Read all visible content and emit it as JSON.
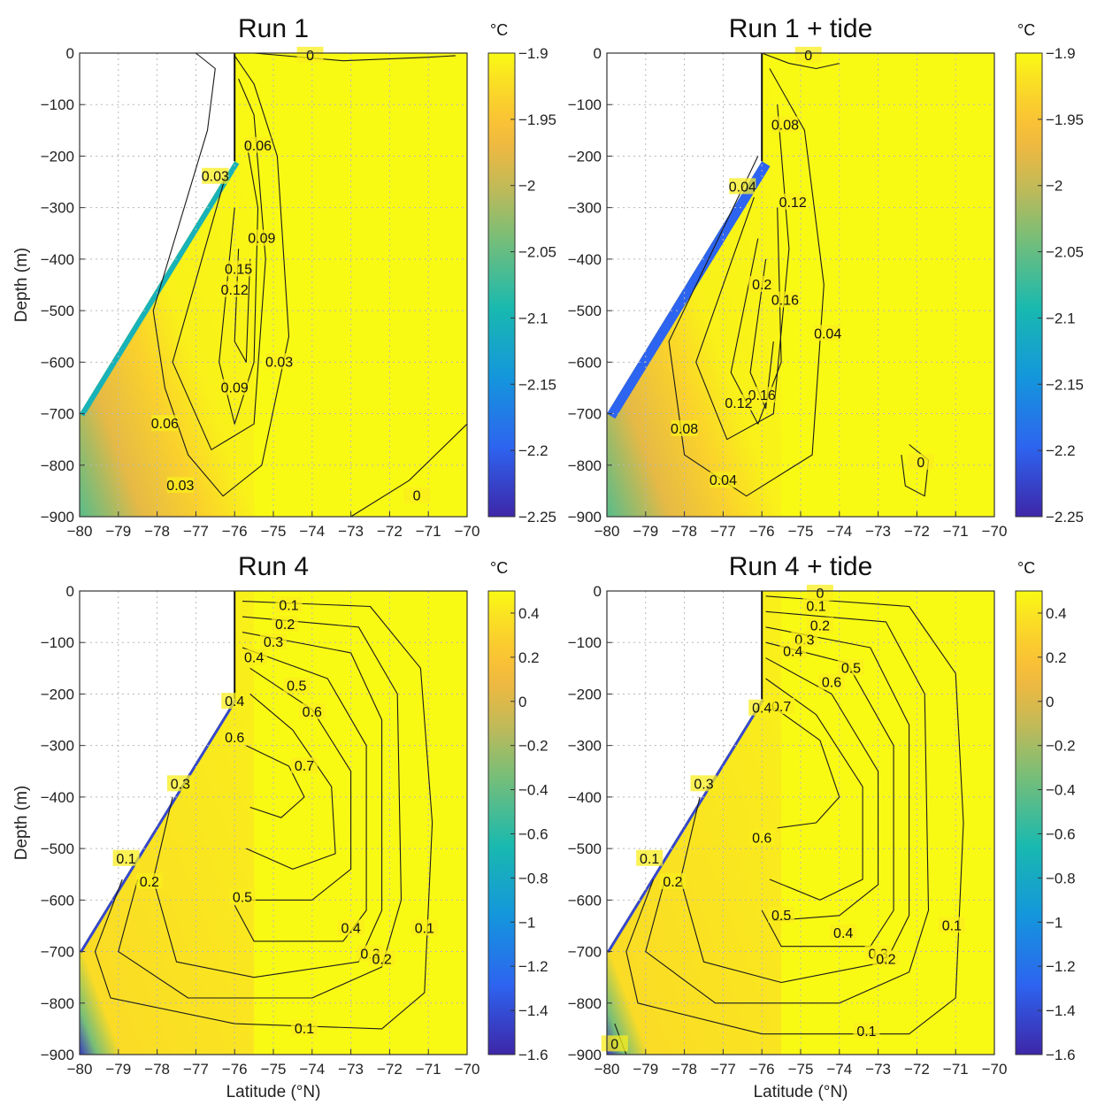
{
  "chart_data": [
    {
      "type": "heatmap",
      "title": "Run 1",
      "xlabel": "",
      "ylabel": "Depth (m)",
      "xlim": [
        -80,
        -70
      ],
      "ylim": [
        -900,
        0
      ],
      "xticks": [
        "-80",
        "-79",
        "-78",
        "-77",
        "-76",
        "-75",
        "-74",
        "-73",
        "-72",
        "-71",
        "-70"
      ],
      "yticks": [
        "0",
        "-100",
        "-200",
        "-300",
        "-400",
        "-500",
        "-600",
        "-700",
        "-800",
        "-900"
      ],
      "colorbar": {
        "unit": "°C",
        "range": [
          -2.25,
          -1.9
        ],
        "ticks": [
          "-1.9",
          "-1.95",
          "-2",
          "-2.05",
          "-2.1",
          "-2.15",
          "-2.2",
          "-2.25"
        ]
      },
      "grid": true,
      "contour_labels": [
        {
          "text": "0",
          "x": -74.05,
          "y": -5
        },
        {
          "text": "0.03",
          "x": -76.5,
          "y": -240
        },
        {
          "text": "0.06",
          "x": -75.4,
          "y": -180
        },
        {
          "text": "0.09",
          "x": -75.3,
          "y": -360
        },
        {
          "text": "0.15",
          "x": -75.9,
          "y": -420
        },
        {
          "text": "0.12",
          "x": -76.0,
          "y": -460
        },
        {
          "text": "0.03",
          "x": -74.85,
          "y": -600
        },
        {
          "text": "0.09",
          "x": -76.0,
          "y": -650
        },
        {
          "text": "0.06",
          "x": -77.8,
          "y": -720
        },
        {
          "text": "0.03",
          "x": -77.4,
          "y": -840
        },
        {
          "text": "0",
          "x": -71.3,
          "y": -860
        }
      ]
    },
    {
      "type": "heatmap",
      "title": "Run 1 + tide",
      "xlabel": "",
      "ylabel": "",
      "xlim": [
        -80,
        -70
      ],
      "ylim": [
        -900,
        0
      ],
      "xticks": [
        "-80",
        "-79",
        "-78",
        "-77",
        "-76",
        "-75",
        "-74",
        "-73",
        "-72",
        "-71",
        "-70"
      ],
      "yticks": [
        "0",
        "-100",
        "-200",
        "-300",
        "-400",
        "-500",
        "-600",
        "-700",
        "-800",
        "-900"
      ],
      "colorbar": {
        "unit": "°C",
        "range": [
          -2.25,
          -1.9
        ],
        "ticks": [
          "-1.9",
          "-1.95",
          "-2",
          "-2.05",
          "-2.1",
          "-2.15",
          "-2.2",
          "-2.25"
        ]
      },
      "grid": true,
      "contour_labels": [
        {
          "text": "0",
          "x": -74.8,
          "y": -5
        },
        {
          "text": "0.08",
          "x": -75.4,
          "y": -140
        },
        {
          "text": "0.04",
          "x": -76.5,
          "y": -260
        },
        {
          "text": "0.12",
          "x": -75.2,
          "y": -290
        },
        {
          "text": "0.2",
          "x": -76.0,
          "y": -450
        },
        {
          "text": "0.16",
          "x": -75.4,
          "y": -480
        },
        {
          "text": "0.04",
          "x": -74.3,
          "y": -545
        },
        {
          "text": "0.16",
          "x": -76.0,
          "y": -665
        },
        {
          "text": "0.12",
          "x": -76.6,
          "y": -680
        },
        {
          "text": "0.08",
          "x": -78.0,
          "y": -730
        },
        {
          "text": "0.04",
          "x": -77.0,
          "y": -830
        },
        {
          "text": "0",
          "x": -71.9,
          "y": -795
        }
      ]
    },
    {
      "type": "heatmap",
      "title": "Run 4",
      "xlabel": "Latitude (°N)",
      "ylabel": "Depth (m)",
      "xlim": [
        -80,
        -70
      ],
      "ylim": [
        -900,
        0
      ],
      "xticks": [
        "-80",
        "-79",
        "-78",
        "-77",
        "-76",
        "-75",
        "-74",
        "-73",
        "-72",
        "-71",
        "-70"
      ],
      "yticks": [
        "0",
        "-100",
        "-200",
        "-300",
        "-400",
        "-500",
        "-600",
        "-700",
        "-800",
        "-900"
      ],
      "colorbar": {
        "unit": "°C",
        "range": [
          -1.6,
          0.5
        ],
        "ticks": [
          "0.4",
          "0.2",
          "0",
          "-0.2",
          "-0.4",
          "-0.6",
          "-0.8",
          "-1",
          "-1.2",
          "-1.4",
          "-1.6"
        ]
      },
      "grid": true,
      "contour_labels": [
        {
          "text": "0.1",
          "x": -74.6,
          "y": -28
        },
        {
          "text": "0.2",
          "x": -74.7,
          "y": -65
        },
        {
          "text": "0.3",
          "x": -75.0,
          "y": -100
        },
        {
          "text": "0.4",
          "x": -75.5,
          "y": -130
        },
        {
          "text": "0.5",
          "x": -74.4,
          "y": -185
        },
        {
          "text": "0.6",
          "x": -74.0,
          "y": -235
        },
        {
          "text": "0.4",
          "x": -76.0,
          "y": -215
        },
        {
          "text": "0.6",
          "x": -76.0,
          "y": -285
        },
        {
          "text": "0.7",
          "x": -74.2,
          "y": -340
        },
        {
          "text": "0.3",
          "x": -77.4,
          "y": -375
        },
        {
          "text": "0.1",
          "x": -78.8,
          "y": -520
        },
        {
          "text": "0.2",
          "x": -78.2,
          "y": -565
        },
        {
          "text": "0.5",
          "x": -75.8,
          "y": -595
        },
        {
          "text": "0.4",
          "x": -73.0,
          "y": -655
        },
        {
          "text": "0.3",
          "x": -72.5,
          "y": -705
        },
        {
          "text": "0.2",
          "x": -72.2,
          "y": -715
        },
        {
          "text": "0.1",
          "x": -71.1,
          "y": -655
        },
        {
          "text": "0.1",
          "x": -74.2,
          "y": -850
        }
      ]
    },
    {
      "type": "heatmap",
      "title": "Run 4 + tide",
      "xlabel": "Latitude (°N)",
      "ylabel": "",
      "xlim": [
        -80,
        -70
      ],
      "ylim": [
        -900,
        0
      ],
      "xticks": [
        "-80",
        "-79",
        "-78",
        "-77",
        "-76",
        "-75",
        "-74",
        "-73",
        "-72",
        "-71",
        "-70"
      ],
      "yticks": [
        "0",
        "-100",
        "-200",
        "-300",
        "-400",
        "-500",
        "-600",
        "-700",
        "-800",
        "-900"
      ],
      "colorbar": {
        "unit": "°C",
        "range": [
          -1.6,
          0.5
        ],
        "ticks": [
          "0.4",
          "0.2",
          "0",
          "-0.2",
          "-0.4",
          "-0.6",
          "-0.8",
          "-1",
          "-1.2",
          "-1.4",
          "-1.6"
        ]
      },
      "grid": true,
      "contour_labels": [
        {
          "text": "0",
          "x": -74.5,
          "y": -5
        },
        {
          "text": "0.1",
          "x": -74.6,
          "y": -30
        },
        {
          "text": "0.2",
          "x": -74.5,
          "y": -68
        },
        {
          "text": "0.3",
          "x": -74.9,
          "y": -95
        },
        {
          "text": "0.4",
          "x": -75.2,
          "y": -118
        },
        {
          "text": "0.5",
          "x": -73.7,
          "y": -150
        },
        {
          "text": "0.6",
          "x": -74.2,
          "y": -178
        },
        {
          "text": "0.7",
          "x": -75.5,
          "y": -225
        },
        {
          "text": "0.4",
          "x": -76.0,
          "y": -228
        },
        {
          "text": "0.3",
          "x": -77.5,
          "y": -375
        },
        {
          "text": "0.6",
          "x": -76.0,
          "y": -480
        },
        {
          "text": "0.1",
          "x": -78.9,
          "y": -520
        },
        {
          "text": "0.2",
          "x": -78.3,
          "y": -565
        },
        {
          "text": "0.5",
          "x": -75.5,
          "y": -630
        },
        {
          "text": "0.4",
          "x": -73.9,
          "y": -665
        },
        {
          "text": "0.3",
          "x": -73.0,
          "y": -705
        },
        {
          "text": "0.2",
          "x": -72.8,
          "y": -715
        },
        {
          "text": "0.1",
          "x": -71.1,
          "y": -650
        },
        {
          "text": "0.1",
          "x": -73.3,
          "y": -855
        },
        {
          "text": "0",
          "x": -79.8,
          "y": -880
        }
      ]
    }
  ]
}
